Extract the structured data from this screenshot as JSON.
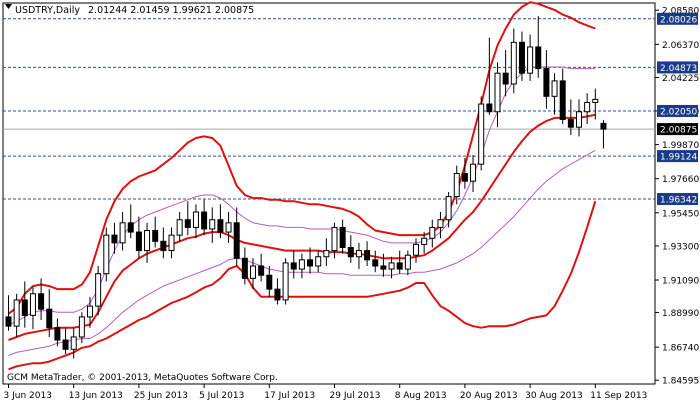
{
  "header": {
    "symbol_timeframe": "USDTRY,Daily",
    "ohlc": "2.01244 2.01459 1.99621 2.00875"
  },
  "footer": {
    "copyright": "GCM MetaTrader, © 2001-2013, MetaQuotes Software Corp."
  },
  "colors": {
    "background": "#ffffff",
    "grid_dashed": "#2f4f8f",
    "candle": "#000000",
    "bollinger_outer": "#dd1111",
    "bollinger_inner": "#b060c0",
    "price_tag_bg": "#1a3a8c",
    "price_tag_text": "#ffffff",
    "current_price_bg": "#000000"
  },
  "price_axis": {
    "ticks": [
      "2.08580",
      "2.06370",
      "2.04225",
      "2.02050",
      "1.99870",
      "1.97660",
      "1.95450",
      "1.93300",
      "1.91090",
      "1.88990",
      "1.86740",
      "1.84595"
    ],
    "tick_values": [
      2.0858,
      2.0637,
      2.04225,
      2.0205,
      1.9987,
      1.9766,
      1.9545,
      1.933,
      1.9109,
      1.8899,
      1.8674,
      1.84595
    ]
  },
  "levels": [
    {
      "label": "2.08026",
      "value": 2.08026
    },
    {
      "label": "2.04873",
      "value": 2.04873
    },
    {
      "label": "2.02050",
      "value": 2.0205
    },
    {
      "label": "1.99124",
      "value": 1.99124
    },
    {
      "label": "1.96342",
      "value": 1.96342
    }
  ],
  "current_price": {
    "label": "2.00875",
    "value": 2.00875
  },
  "time_axis": {
    "labels": [
      "3 Jun 2013",
      "13 Jun 2013",
      "25 Jun 2013",
      "5 Jul 2013",
      "17 Jul 2013",
      "29 Jul 2013",
      "8 Aug 2013",
      "20 Aug 2013",
      "30 Aug 2013",
      "11 Sep 2013"
    ],
    "label_bar_index": [
      0,
      8,
      16,
      24,
      32,
      40,
      48,
      56,
      64,
      72
    ]
  },
  "chart_data": {
    "type": "candlestick",
    "symbol": "USDTRY",
    "timeframe": "Daily",
    "ylim": [
      1.8435,
      2.0905
    ],
    "candles": [
      {
        "o": 1.887,
        "h": 1.901,
        "l": 1.878,
        "c": 1.881
      },
      {
        "o": 1.881,
        "h": 1.902,
        "l": 1.874,
        "c": 1.898
      },
      {
        "o": 1.898,
        "h": 1.91,
        "l": 1.88,
        "c": 1.888
      },
      {
        "o": 1.888,
        "h": 1.906,
        "l": 1.879,
        "c": 1.902
      },
      {
        "o": 1.902,
        "h": 1.912,
        "l": 1.885,
        "c": 1.892
      },
      {
        "o": 1.892,
        "h": 1.905,
        "l": 1.874,
        "c": 1.88
      },
      {
        "o": 1.88,
        "h": 1.886,
        "l": 1.868,
        "c": 1.872
      },
      {
        "o": 1.872,
        "h": 1.88,
        "l": 1.863,
        "c": 1.866
      },
      {
        "o": 1.866,
        "h": 1.88,
        "l": 1.86,
        "c": 1.874
      },
      {
        "o": 1.874,
        "h": 1.89,
        "l": 1.87,
        "c": 1.887
      },
      {
        "o": 1.887,
        "h": 1.9,
        "l": 1.88,
        "c": 1.894
      },
      {
        "o": 1.894,
        "h": 1.92,
        "l": 1.888,
        "c": 1.915
      },
      {
        "o": 1.915,
        "h": 1.945,
        "l": 1.91,
        "c": 1.94
      },
      {
        "o": 1.94,
        "h": 1.948,
        "l": 1.928,
        "c": 1.935
      },
      {
        "o": 1.935,
        "h": 1.955,
        "l": 1.93,
        "c": 1.948
      },
      {
        "o": 1.948,
        "h": 1.96,
        "l": 1.938,
        "c": 1.942
      },
      {
        "o": 1.942,
        "h": 1.952,
        "l": 1.925,
        "c": 1.93
      },
      {
        "o": 1.93,
        "h": 1.948,
        "l": 1.922,
        "c": 1.943
      },
      {
        "o": 1.943,
        "h": 1.952,
        "l": 1.932,
        "c": 1.936
      },
      {
        "o": 1.936,
        "h": 1.945,
        "l": 1.925,
        "c": 1.93
      },
      {
        "o": 1.93,
        "h": 1.945,
        "l": 1.925,
        "c": 1.94
      },
      {
        "o": 1.94,
        "h": 1.955,
        "l": 1.936,
        "c": 1.95
      },
      {
        "o": 1.95,
        "h": 1.962,
        "l": 1.94,
        "c": 1.945
      },
      {
        "o": 1.945,
        "h": 1.96,
        "l": 1.938,
        "c": 1.955
      },
      {
        "o": 1.955,
        "h": 1.963,
        "l": 1.94,
        "c": 1.944
      },
      {
        "o": 1.944,
        "h": 1.958,
        "l": 1.935,
        "c": 1.95
      },
      {
        "o": 1.95,
        "h": 1.96,
        "l": 1.938,
        "c": 1.942
      },
      {
        "o": 1.942,
        "h": 1.955,
        "l": 1.935,
        "c": 1.948
      },
      {
        "o": 1.948,
        "h": 1.958,
        "l": 1.92,
        "c": 1.925
      },
      {
        "o": 1.925,
        "h": 1.932,
        "l": 1.908,
        "c": 1.912
      },
      {
        "o": 1.912,
        "h": 1.925,
        "l": 1.905,
        "c": 1.92
      },
      {
        "o": 1.92,
        "h": 1.928,
        "l": 1.91,
        "c": 1.914
      },
      {
        "o": 1.914,
        "h": 1.92,
        "l": 1.9,
        "c": 1.905
      },
      {
        "o": 1.905,
        "h": 1.912,
        "l": 1.895,
        "c": 1.898
      },
      {
        "o": 1.898,
        "h": 1.925,
        "l": 1.895,
        "c": 1.922
      },
      {
        "o": 1.922,
        "h": 1.93,
        "l": 1.912,
        "c": 1.918
      },
      {
        "o": 1.918,
        "h": 1.928,
        "l": 1.912,
        "c": 1.924
      },
      {
        "o": 1.924,
        "h": 1.932,
        "l": 1.915,
        "c": 1.92
      },
      {
        "o": 1.92,
        "h": 1.93,
        "l": 1.916,
        "c": 1.926
      },
      {
        "o": 1.926,
        "h": 1.938,
        "l": 1.92,
        "c": 1.93
      },
      {
        "o": 1.93,
        "h": 1.948,
        "l": 1.925,
        "c": 1.945
      },
      {
        "o": 1.945,
        "h": 1.95,
        "l": 1.928,
        "c": 1.932
      },
      {
        "o": 1.932,
        "h": 1.94,
        "l": 1.922,
        "c": 1.926
      },
      {
        "o": 1.926,
        "h": 1.935,
        "l": 1.918,
        "c": 1.93
      },
      {
        "o": 1.93,
        "h": 1.936,
        "l": 1.92,
        "c": 1.924
      },
      {
        "o": 1.924,
        "h": 1.93,
        "l": 1.916,
        "c": 1.92
      },
      {
        "o": 1.92,
        "h": 1.928,
        "l": 1.913,
        "c": 1.918
      },
      {
        "o": 1.918,
        "h": 1.926,
        "l": 1.912,
        "c": 1.922
      },
      {
        "o": 1.922,
        "h": 1.93,
        "l": 1.915,
        "c": 1.918
      },
      {
        "o": 1.918,
        "h": 1.93,
        "l": 1.914,
        "c": 1.927
      },
      {
        "o": 1.927,
        "h": 1.938,
        "l": 1.922,
        "c": 1.934
      },
      {
        "o": 1.934,
        "h": 1.942,
        "l": 1.928,
        "c": 1.938
      },
      {
        "o": 1.938,
        "h": 1.95,
        "l": 1.932,
        "c": 1.945
      },
      {
        "o": 1.945,
        "h": 1.955,
        "l": 1.938,
        "c": 1.95
      },
      {
        "o": 1.95,
        "h": 1.968,
        "l": 1.945,
        "c": 1.965
      },
      {
        "o": 1.965,
        "h": 1.985,
        "l": 1.96,
        "c": 1.98
      },
      {
        "o": 1.98,
        "h": 1.99,
        "l": 1.97,
        "c": 1.975
      },
      {
        "o": 1.975,
        "h": 1.992,
        "l": 1.968,
        "c": 1.986
      },
      {
        "o": 1.986,
        "h": 2.03,
        "l": 1.982,
        "c": 2.025
      },
      {
        "o": 2.025,
        "h": 2.068,
        "l": 2.018,
        "c": 2.02
      },
      {
        "o": 2.02,
        "h": 2.052,
        "l": 2.01,
        "c": 2.045
      },
      {
        "o": 2.045,
        "h": 2.06,
        "l": 2.03,
        "c": 2.038
      },
      {
        "o": 2.038,
        "h": 2.074,
        "l": 2.032,
        "c": 2.065
      },
      {
        "o": 2.065,
        "h": 2.072,
        "l": 2.04,
        "c": 2.045
      },
      {
        "o": 2.045,
        "h": 2.07,
        "l": 2.04,
        "c": 2.062
      },
      {
        "o": 2.062,
        "h": 2.082,
        "l": 2.042,
        "c": 2.048
      },
      {
        "o": 2.048,
        "h": 2.06,
        "l": 2.022,
        "c": 2.03
      },
      {
        "o": 2.03,
        "h": 2.045,
        "l": 2.018,
        "c": 2.04
      },
      {
        "o": 2.04,
        "h": 2.048,
        "l": 2.012,
        "c": 2.015
      },
      {
        "o": 2.015,
        "h": 2.028,
        "l": 2.005,
        "c": 2.01
      },
      {
        "o": 2.01,
        "h": 2.028,
        "l": 2.004,
        "c": 2.02
      },
      {
        "o": 2.02,
        "h": 2.032,
        "l": 2.012,
        "c": 2.026
      },
      {
        "o": 2.026,
        "h": 2.035,
        "l": 2.015,
        "c": 2.028
      },
      {
        "o": 2.01244,
        "h": 2.01459,
        "l": 1.99621,
        "c": 2.00875
      }
    ],
    "bollinger_outer": {
      "upper": [
        1.889,
        1.893,
        1.902,
        1.907,
        1.908,
        1.907,
        1.905,
        1.905,
        1.905,
        1.908,
        1.916,
        1.933,
        1.95,
        1.962,
        1.97,
        1.975,
        1.978,
        1.98,
        1.982,
        1.986,
        1.99,
        1.995,
        2.0,
        2.003,
        2.004,
        2.003,
        1.998,
        1.985,
        1.972,
        1.966,
        1.964,
        1.964,
        1.963,
        1.963,
        1.962,
        1.962,
        1.961,
        1.96,
        1.96,
        1.959,
        1.958,
        1.957,
        1.955,
        1.952,
        1.947,
        1.943,
        1.942,
        1.941,
        1.94,
        1.94,
        1.94,
        1.94,
        1.942,
        1.946,
        1.955,
        1.968,
        1.985,
        2.005,
        2.025,
        2.047,
        2.063,
        2.074,
        2.083,
        2.088,
        2.091,
        2.09,
        2.088,
        2.086,
        2.083,
        2.081,
        2.078,
        2.076,
        2.074
      ],
      "middle": [
        1.872,
        1.874,
        1.876,
        1.877,
        1.878,
        1.879,
        1.88,
        1.88,
        1.88,
        1.881,
        1.882,
        1.89,
        1.9,
        1.91,
        1.917,
        1.921,
        1.925,
        1.928,
        1.93,
        1.932,
        1.934,
        1.936,
        1.938,
        1.939,
        1.941,
        1.942,
        1.942,
        1.94,
        1.937,
        1.935,
        1.934,
        1.933,
        1.932,
        1.931,
        1.93,
        1.93,
        1.93,
        1.93,
        1.93,
        1.929,
        1.929,
        1.929,
        1.928,
        1.928,
        1.927,
        1.926,
        1.925,
        1.925,
        1.925,
        1.925,
        1.926,
        1.927,
        1.93,
        1.934,
        1.938,
        1.944,
        1.95,
        1.955,
        1.962,
        1.97,
        1.978,
        1.986,
        1.994,
        2.001,
        2.007,
        2.011,
        2.014,
        2.016,
        2.016,
        2.016,
        2.016,
        2.017,
        2.018
      ],
      "lower": [
        1.853,
        1.855,
        1.856,
        1.857,
        1.857,
        1.858,
        1.86,
        1.862,
        1.864,
        1.867,
        1.868,
        1.871,
        1.873,
        1.876,
        1.879,
        1.882,
        1.885,
        1.887,
        1.89,
        1.893,
        1.896,
        1.898,
        1.9,
        1.903,
        1.906,
        1.908,
        1.912,
        1.918,
        1.92,
        1.915,
        1.906,
        1.9,
        1.9,
        1.9,
        1.9,
        1.9,
        1.9,
        1.9,
        1.9,
        1.9,
        1.9,
        1.9,
        1.9,
        1.9,
        1.9,
        1.901,
        1.902,
        1.903,
        1.904,
        1.906,
        1.909,
        1.909,
        1.901,
        1.894,
        1.891,
        1.887,
        1.883,
        1.881,
        1.88,
        1.881,
        1.881,
        1.881,
        1.882,
        1.884,
        1.886,
        1.887,
        1.888,
        1.894,
        1.904,
        1.915,
        1.929,
        1.945,
        1.962
      ]
    },
    "bollinger_inner": {
      "upper": [
        1.882,
        1.884,
        1.887,
        1.89,
        1.891,
        1.891,
        1.89,
        1.89,
        1.89,
        1.892,
        1.896,
        1.905,
        1.918,
        1.93,
        1.94,
        1.946,
        1.95,
        1.953,
        1.955,
        1.957,
        1.959,
        1.961,
        1.963,
        1.965,
        1.966,
        1.966,
        1.964,
        1.96,
        1.955,
        1.951,
        1.948,
        1.947,
        1.946,
        1.946,
        1.945,
        1.945,
        1.945,
        1.944,
        1.944,
        1.944,
        1.944,
        1.943,
        1.942,
        1.941,
        1.94,
        1.938,
        1.936,
        1.935,
        1.935,
        1.935,
        1.935,
        1.936,
        1.938,
        1.942,
        1.948,
        1.956,
        1.966,
        1.978,
        1.992,
        2.008,
        2.02,
        2.032,
        2.04,
        2.045,
        2.049,
        2.049,
        2.049,
        2.049,
        2.049,
        2.048,
        2.048,
        2.048,
        2.048
      ],
      "lower": [
        1.862,
        1.864,
        1.865,
        1.866,
        1.867,
        1.868,
        1.87,
        1.871,
        1.872,
        1.873,
        1.873,
        1.876,
        1.88,
        1.885,
        1.89,
        1.894,
        1.898,
        1.901,
        1.904,
        1.907,
        1.909,
        1.911,
        1.913,
        1.915,
        1.917,
        1.919,
        1.921,
        1.924,
        1.925,
        1.924,
        1.922,
        1.92,
        1.918,
        1.917,
        1.916,
        1.916,
        1.916,
        1.916,
        1.916,
        1.915,
        1.915,
        1.915,
        1.914,
        1.914,
        1.914,
        1.914,
        1.914,
        1.914,
        1.915,
        1.915,
        1.916,
        1.916,
        1.917,
        1.918,
        1.92,
        1.922,
        1.925,
        1.928,
        1.932,
        1.937,
        1.942,
        1.947,
        1.952,
        1.958,
        1.964,
        1.97,
        1.975,
        1.979,
        1.983,
        1.986,
        1.989,
        1.992,
        1.995
      ]
    }
  }
}
